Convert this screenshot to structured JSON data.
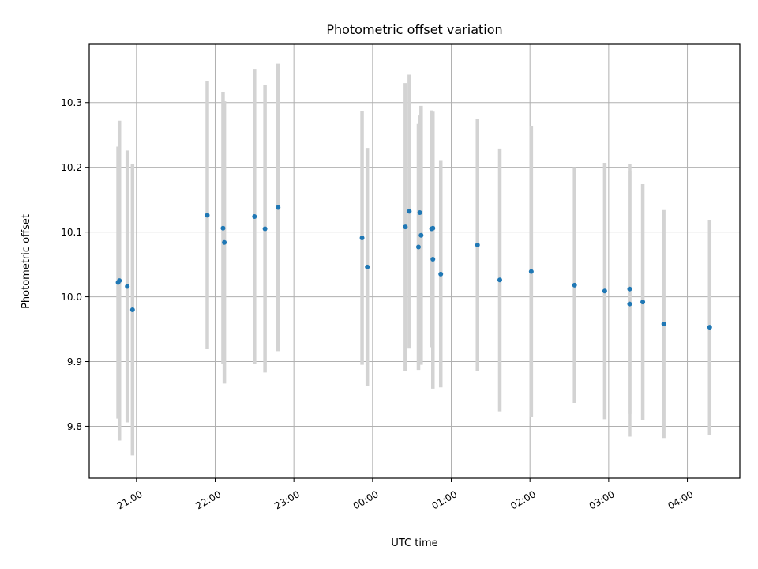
{
  "chart_data": {
    "type": "scatter",
    "title": "Photometric offset variation",
    "xlabel": "UTC time",
    "ylabel": "Photometric offset",
    "x_axis_kind": "time",
    "x_start_day": "2000-01-01",
    "xlim": [
      "20:24",
      "04:40"
    ],
    "ylim": [
      9.72,
      10.39
    ],
    "x_ticks": [
      "21:00",
      "22:00",
      "23:00",
      "00:00",
      "01:00",
      "02:00",
      "03:00",
      "04:00"
    ],
    "y_ticks": [
      9.8,
      9.9,
      10.0,
      10.1,
      10.2,
      10.3
    ],
    "y_tick_labels": [
      "9.8",
      "9.9",
      "10.0",
      "10.1",
      "10.2",
      "10.3"
    ],
    "grid": true,
    "marker_color": "#1f77b4",
    "errorbar_color": "#d3d3d3",
    "points": [
      {
        "t": "20:46",
        "y": 10.022,
        "err": 0.21
      },
      {
        "t": "20:47",
        "y": 10.025,
        "err": 0.247
      },
      {
        "t": "20:53",
        "y": 10.016,
        "err": 0.21
      },
      {
        "t": "20:57",
        "y": 9.98,
        "err": 0.225
      },
      {
        "t": "21:54",
        "y": 10.126,
        "err": 0.207
      },
      {
        "t": "22:06",
        "y": 10.106,
        "err": 0.21
      },
      {
        "t": "22:07",
        "y": 10.084,
        "err": 0.218
      },
      {
        "t": "22:30",
        "y": 10.124,
        "err": 0.228
      },
      {
        "t": "22:38",
        "y": 10.105,
        "err": 0.222
      },
      {
        "t": "22:48",
        "y": 10.138,
        "err": 0.222
      },
      {
        "t": "23:52",
        "y": 10.091,
        "err": 0.196
      },
      {
        "t": "23:56",
        "y": 10.046,
        "err": 0.184
      },
      {
        "t": "00:25",
        "y": 10.108,
        "err": 0.222
      },
      {
        "t": "00:28",
        "y": 10.132,
        "err": 0.211
      },
      {
        "t": "00:35",
        "y": 10.077,
        "err": 0.19
      },
      {
        "t": "00:36",
        "y": 10.13,
        "err": 0.15
      },
      {
        "t": "00:37",
        "y": 10.095,
        "err": 0.2
      },
      {
        "t": "00:45",
        "y": 10.105,
        "err": 0.183
      },
      {
        "t": "00:46",
        "y": 10.106,
        "err": 0.18
      },
      {
        "t": "00:46",
        "y": 10.058,
        "err": 0.2
      },
      {
        "t": "00:52",
        "y": 10.035,
        "err": 0.175
      },
      {
        "t": "01:20",
        "y": 10.08,
        "err": 0.195
      },
      {
        "t": "01:37",
        "y": 10.026,
        "err": 0.203
      },
      {
        "t": "02:01",
        "y": 10.039,
        "err": 0.225
      },
      {
        "t": "02:34",
        "y": 10.018,
        "err": 0.182
      },
      {
        "t": "02:57",
        "y": 10.009,
        "err": 0.198
      },
      {
        "t": "03:16",
        "y": 10.012,
        "err": 0.193
      },
      {
        "t": "03:16",
        "y": 9.989,
        "err": 0.205
      },
      {
        "t": "03:26",
        "y": 9.992,
        "err": 0.182
      },
      {
        "t": "03:42",
        "y": 9.958,
        "err": 0.176
      },
      {
        "t": "04:17",
        "y": 9.953,
        "err": 0.166
      }
    ]
  }
}
